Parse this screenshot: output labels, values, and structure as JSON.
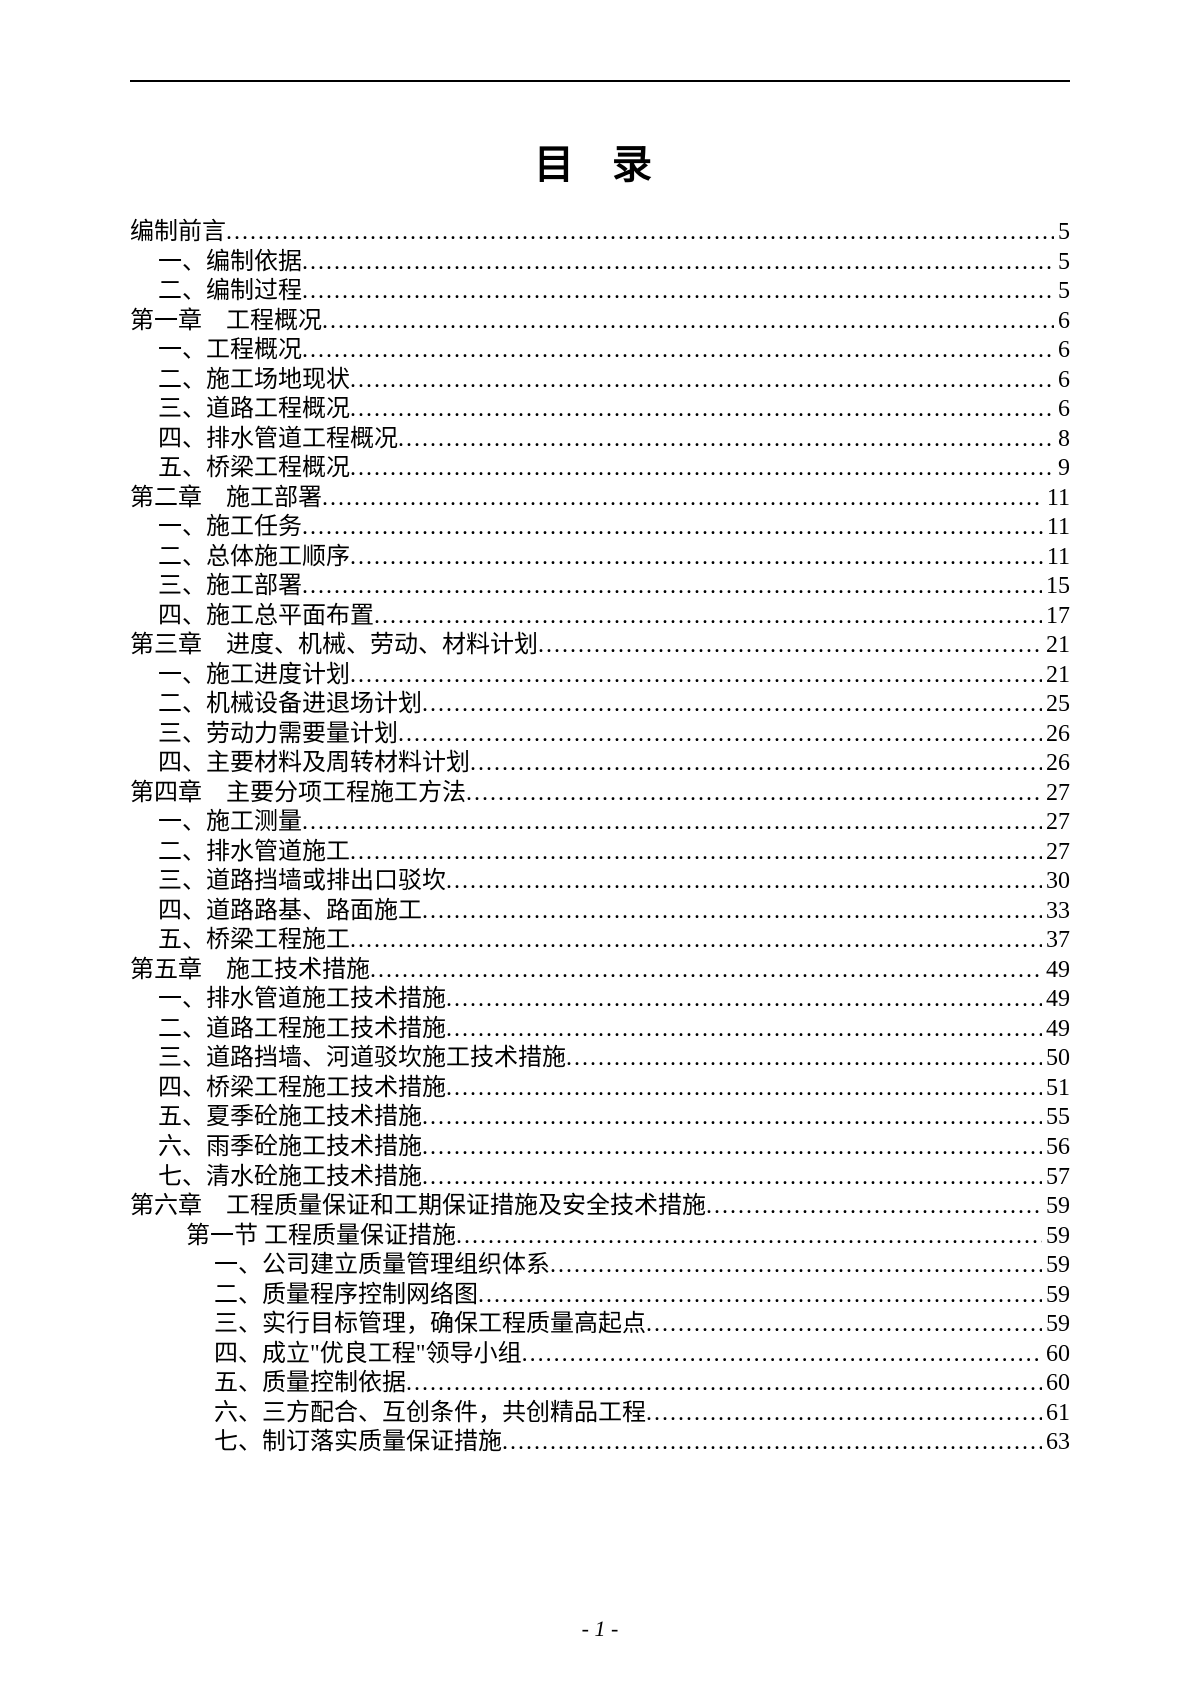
{
  "title": "目 录",
  "page_number": "- 1 -",
  "dot_char": ".",
  "entries": [
    {
      "label": "编制前言",
      "page": "5",
      "indent": 0
    },
    {
      "label": "一、编制依据",
      "page": "5",
      "indent": 1
    },
    {
      "label": "二、编制过程",
      "page": "5",
      "indent": 1
    },
    {
      "label": "第一章　工程概况",
      "page": "6",
      "indent": 0
    },
    {
      "label": "一、工程概况",
      "page": "6",
      "indent": 1
    },
    {
      "label": "二、施工场地现状",
      "page": "6",
      "indent": 1
    },
    {
      "label": "三、道路工程概况",
      "page": "6",
      "indent": 1
    },
    {
      "label": "四、排水管道工程概况",
      "page": "8",
      "indent": 1
    },
    {
      "label": "五、桥梁工程概况",
      "page": "9",
      "indent": 1
    },
    {
      "label": "第二章　施工部署",
      "page": "11",
      "indent": 0
    },
    {
      "label": "一、施工任务",
      "page": "11",
      "indent": 1
    },
    {
      "label": "二、总体施工顺序",
      "page": "11",
      "indent": 1
    },
    {
      "label": "三、施工部署",
      "page": "15",
      "indent": 1
    },
    {
      "label": "四、施工总平面布置",
      "page": "17",
      "indent": 1
    },
    {
      "label": "第三章　进度、机械、劳动、材料计划",
      "page": "21",
      "indent": 0
    },
    {
      "label": "一、施工进度计划",
      "page": "21",
      "indent": 1
    },
    {
      "label": "二、机械设备进退场计划",
      "page": "25",
      "indent": 1
    },
    {
      "label": "三、劳动力需要量计划",
      "page": "26",
      "indent": 1
    },
    {
      "label": "四、主要材料及周转材料计划",
      "page": "26",
      "indent": 1
    },
    {
      "label": "第四章　主要分项工程施工方法",
      "page": "27",
      "indent": 0
    },
    {
      "label": "一、施工测量",
      "page": "27",
      "indent": 1
    },
    {
      "label": "二、排水管道施工",
      "page": "27",
      "indent": 1
    },
    {
      "label": "三、道路挡墙或排出口驳坎",
      "page": "30",
      "indent": 1
    },
    {
      "label": "四、道路路基、路面施工",
      "page": "33",
      "indent": 1
    },
    {
      "label": "五、桥梁工程施工",
      "page": "37",
      "indent": 1
    },
    {
      "label": "第五章　施工技术措施",
      "page": "49",
      "indent": 0
    },
    {
      "label": "一、排水管道施工技术措施",
      "page": "49",
      "indent": 1
    },
    {
      "label": "二、道路工程施工技术措施",
      "page": "49",
      "indent": 1
    },
    {
      "label": "三、道路挡墙、河道驳坎施工技术措施",
      "page": "50",
      "indent": 1
    },
    {
      "label": "四、桥梁工程施工技术措施",
      "page": "51",
      "indent": 1
    },
    {
      "label": "五、夏季砼施工技术措施",
      "page": "55",
      "indent": 1
    },
    {
      "label": "六、雨季砼施工技术措施",
      "page": "56",
      "indent": 1
    },
    {
      "label": "七、清水砼施工技术措施",
      "page": "57",
      "indent": 1
    },
    {
      "label": "第六章　工程质量保证和工期保证措施及安全技术措施",
      "page": "59",
      "indent": 0
    },
    {
      "label": "第一节  工程质量保证措施",
      "page": "59",
      "indent": 2
    },
    {
      "label": "一、公司建立质量管理组织体系",
      "page": "59",
      "indent": 3
    },
    {
      "label": "二、质量程序控制网络图",
      "page": "59",
      "indent": 3
    },
    {
      "label": "三、实行目标管理，确保工程质量高起点",
      "page": "59",
      "indent": 3
    },
    {
      "label": "四、成立\"优良工程\"领导小组",
      "page": "60",
      "indent": 3
    },
    {
      "label": "五、质量控制依据",
      "page": "60",
      "indent": 3
    },
    {
      "label": "六、三方配合、互创条件，共创精品工程",
      "page": "61",
      "indent": 3
    },
    {
      "label": "七、制订落实质量保证措施",
      "page": "63",
      "indent": 3
    }
  ]
}
